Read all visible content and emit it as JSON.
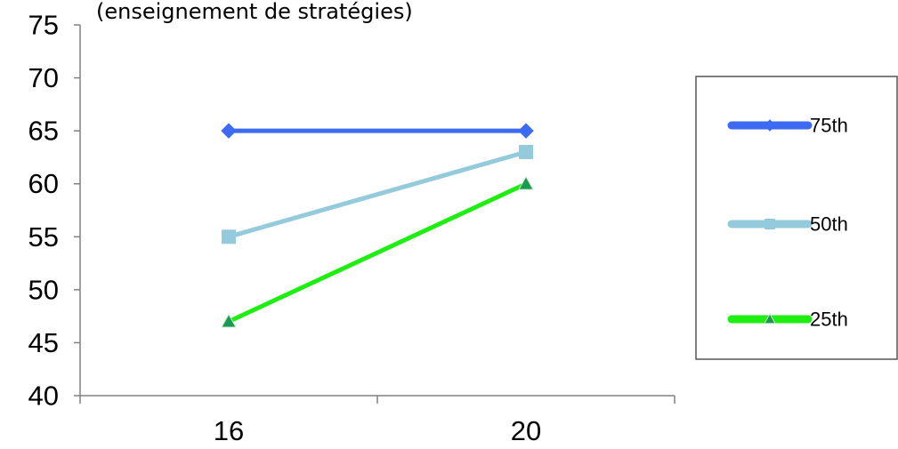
{
  "chart_data": {
    "type": "line",
    "title": "(enseignement de stratégies)",
    "xlabel": "",
    "ylabel": "",
    "categories": [
      "16",
      "20"
    ],
    "ylim": [
      40,
      75
    ],
    "yticks": [
      "40",
      "45",
      "50",
      "55",
      "60",
      "65",
      "70",
      "75"
    ],
    "grid": false,
    "legend_position": "right",
    "series": [
      {
        "name": "75th",
        "values": [
          65,
          65
        ],
        "color": "#3d6af2",
        "marker": "diamond"
      },
      {
        "name": "50th",
        "values": [
          55,
          63
        ],
        "color": "#93cbdc",
        "marker": "square"
      },
      {
        "name": "25th",
        "values": [
          47,
          60
        ],
        "color": "#1fee12",
        "marker": "triangle"
      }
    ]
  }
}
